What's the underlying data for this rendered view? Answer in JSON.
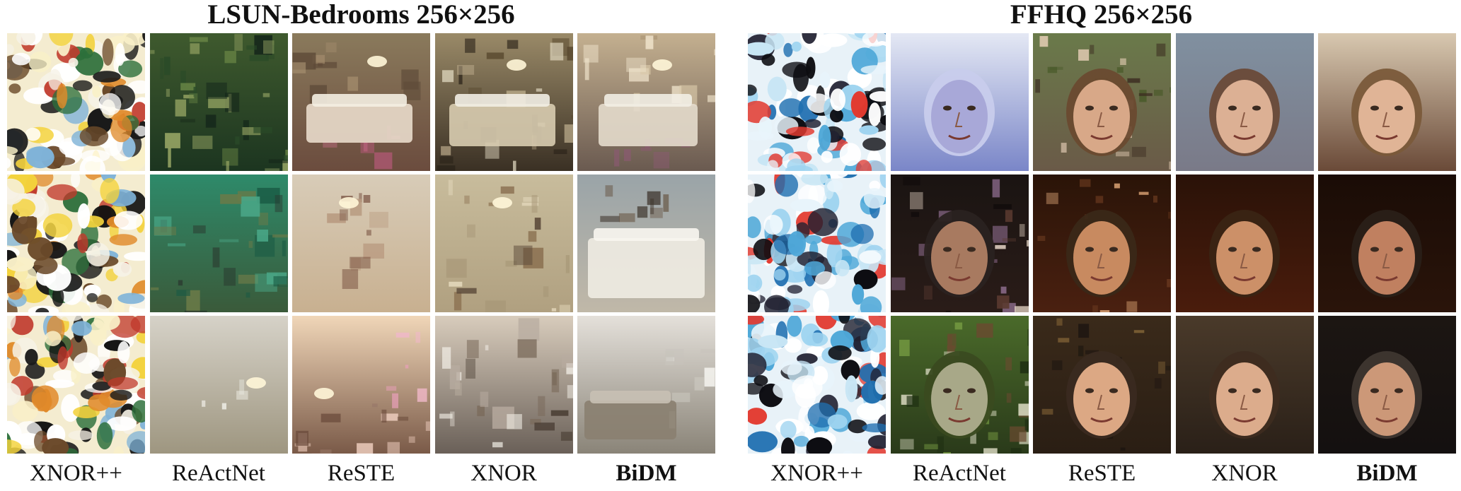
{
  "left_panel": {
    "title": "LSUN-Bedrooms 256×256",
    "methods": [
      "XNOR++",
      "ReActNet",
      "ReSTE",
      "XNOR",
      "BiDM"
    ]
  },
  "right_panel": {
    "title": "FFHQ 256×256",
    "methods": [
      "XNOR++",
      "ReActNet",
      "ReSTE",
      "XNOR",
      "BiDM"
    ]
  },
  "bold_method": "BiDM",
  "rows": 3,
  "cell_contents": {
    "left": [
      [
        "noise",
        "green-bedroom",
        "warm-bedroom",
        "bedroom-artifacts",
        "bedroom-clean"
      ],
      [
        "noise",
        "green-room",
        "beige-room",
        "beige-room-artifacts",
        "white-bedroom"
      ],
      [
        "noise",
        "fog",
        "pink-room",
        "gray-room",
        "window-bedroom"
      ]
    ],
    "right": [
      [
        "blue-noise",
        "blue-blur-face",
        "face-artifacts",
        "face-smooth",
        "face-clean"
      ],
      [
        "blue-noise",
        "dark-distorted-face",
        "face-warm",
        "face-warm-smooth",
        "face-man-clean"
      ],
      [
        "blue-noise",
        "green-distorted-face",
        "face-warm-2",
        "face-smooth-2",
        "face-man-2-clean"
      ]
    ]
  }
}
